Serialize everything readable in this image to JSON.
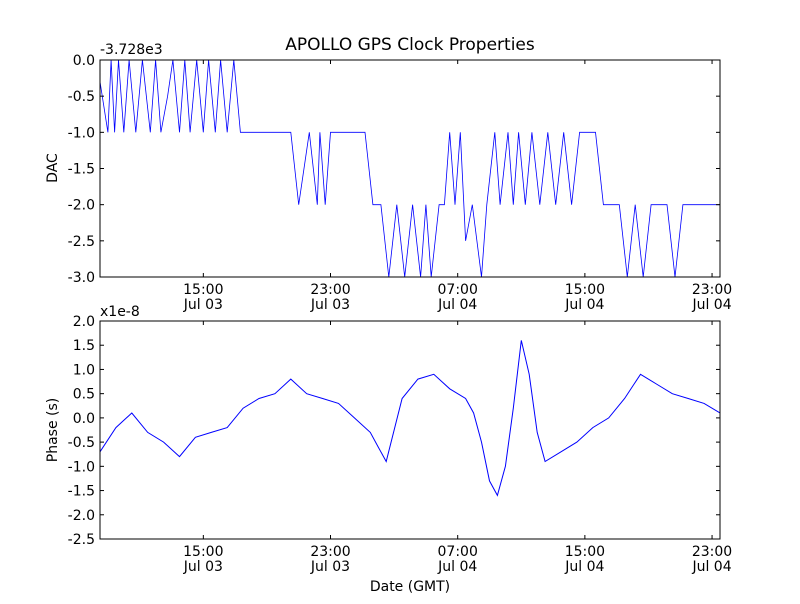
{
  "chart_data": [
    {
      "type": "line",
      "title": "APOLLO GPS Clock Properties",
      "ylabel": "DAC",
      "xlabel": "",
      "offset_label": "-3.728e3",
      "ylim": [
        -3.0,
        0.0
      ],
      "yticks": [
        0.0,
        -0.5,
        -1.0,
        -1.5,
        -2.0,
        -2.5,
        -3.0
      ],
      "ytick_labels": [
        "0.0",
        "-0.5",
        "-1.0",
        "-1.5",
        "-2.0",
        "-2.5",
        "-3.0"
      ],
      "xlim": [
        "2008-07-03T08:30",
        "2008-07-04T23:30"
      ],
      "xticks": [
        "2008-07-03T15:00",
        "2008-07-03T23:00",
        "2008-07-04T07:00",
        "2008-07-04T15:00",
        "2008-07-04T23:00"
      ],
      "xtick_labels": [
        [
          "15:00",
          "Jul 03"
        ],
        [
          "23:00",
          "Jul 03"
        ],
        [
          "07:00",
          "Jul 04"
        ],
        [
          "15:00",
          "Jul 04"
        ],
        [
          "23:00",
          "Jul 04"
        ]
      ],
      "grid": false,
      "line_color": "#0000ff",
      "series": [
        {
          "x": [
            "2008-07-03T08:30",
            "2008-07-03T09:00",
            "2008-07-03T09:12",
            "2008-07-03T09:25",
            "2008-07-03T09:40",
            "2008-07-03T10:00",
            "2008-07-03T10:20",
            "2008-07-03T10:45",
            "2008-07-03T11:10",
            "2008-07-03T11:40",
            "2008-07-03T12:00",
            "2008-07-03T12:20",
            "2008-07-03T12:45",
            "2008-07-03T13:05",
            "2008-07-03T13:30",
            "2008-07-03T13:50",
            "2008-07-03T14:10",
            "2008-07-03T14:35",
            "2008-07-03T15:00",
            "2008-07-03T15:20",
            "2008-07-03T15:45",
            "2008-07-03T16:05",
            "2008-07-03T16:30",
            "2008-07-03T16:55",
            "2008-07-03T17:20",
            "2008-07-03T17:40",
            "2008-07-03T18:00",
            "2008-07-03T18:25",
            "2008-07-03T18:45",
            "2008-07-03T19:05",
            "2008-07-03T19:25",
            "2008-07-03T19:45",
            "2008-07-03T20:05",
            "2008-07-03T20:30",
            "2008-07-03T21:00",
            "2008-07-03T21:40",
            "2008-07-03T22:10",
            "2008-07-03T22:20",
            "2008-07-03T22:40",
            "2008-07-03T23:00",
            "2008-07-03T23:40",
            "2008-07-04T00:00",
            "2008-07-04T00:15",
            "2008-07-04T00:40",
            "2008-07-04T01:10",
            "2008-07-04T01:40",
            "2008-07-04T02:10",
            "2008-07-04T02:40",
            "2008-07-04T03:10",
            "2008-07-04T03:40",
            "2008-07-04T04:10",
            "2008-07-04T04:40",
            "2008-07-04T05:00",
            "2008-07-04T05:20",
            "2008-07-04T05:50",
            "2008-07-04T06:10",
            "2008-07-04T06:30",
            "2008-07-04T06:50",
            "2008-07-04T07:10",
            "2008-07-04T07:30",
            "2008-07-04T07:55",
            "2008-07-04T08:30",
            "2008-07-04T08:50",
            "2008-07-04T09:20",
            "2008-07-04T09:40",
            "2008-07-04T10:10",
            "2008-07-04T10:30",
            "2008-07-04T10:50",
            "2008-07-04T11:15",
            "2008-07-04T11:40",
            "2008-07-04T12:10",
            "2008-07-04T12:40",
            "2008-07-04T13:10",
            "2008-07-04T13:40",
            "2008-07-04T14:10",
            "2008-07-04T14:40",
            "2008-07-04T15:10",
            "2008-07-04T15:40",
            "2008-07-04T16:10",
            "2008-07-04T16:40",
            "2008-07-04T17:10",
            "2008-07-04T17:40",
            "2008-07-04T18:10",
            "2008-07-04T18:40",
            "2008-07-04T19:10",
            "2008-07-04T19:40",
            "2008-07-04T20:10",
            "2008-07-04T20:40",
            "2008-07-04T21:10",
            "2008-07-04T21:40",
            "2008-07-04T22:10",
            "2008-07-04T22:40",
            "2008-07-04T23:10",
            "2008-07-04T23:30"
          ],
          "y": [
            -0.3,
            -1.0,
            0.0,
            -1.0,
            0.0,
            -1.0,
            0.0,
            -1.0,
            0.0,
            -1.0,
            0.0,
            -1.0,
            -0.5,
            0.0,
            -1.0,
            0.0,
            -1.0,
            0.0,
            -1.0,
            0.0,
            -1.0,
            0.0,
            -1.0,
            0.0,
            -1.0,
            -1.0,
            -1.0,
            -1.0,
            -1.0,
            -1.0,
            -1.0,
            -1.0,
            -1.0,
            -1.0,
            -2.0,
            -1.0,
            -2.0,
            -1.0,
            -2.0,
            -1.0,
            -1.0,
            -1.0,
            -1.0,
            -1.0,
            -1.0,
            -2.0,
            -2.0,
            -3.0,
            -2.0,
            -3.0,
            -2.0,
            -3.0,
            -2.0,
            -3.0,
            -2.0,
            -2.0,
            -1.0,
            -2.0,
            -1.0,
            -2.5,
            -2.0,
            -3.0,
            -2.0,
            -1.0,
            -2.0,
            -1.0,
            -2.0,
            -1.0,
            -2.0,
            -1.0,
            -2.0,
            -1.0,
            -2.0,
            -1.0,
            -2.0,
            -1.0,
            -1.0,
            -1.0,
            -2.0,
            -2.0,
            -2.0,
            -3.0,
            -2.0,
            -3.0,
            -2.0,
            -2.0,
            -2.0,
            -3.0,
            -2.0,
            -2.0,
            -2.0,
            -2.0,
            -2.0,
            -2.0
          ]
        }
      ]
    },
    {
      "type": "line",
      "title": "",
      "ylabel": "Phase (s)",
      "xlabel": "Date (GMT)",
      "offset_label": "x1e-8",
      "ylim": [
        -2.5,
        2.0
      ],
      "yticks": [
        2.0,
        1.5,
        1.0,
        0.5,
        0.0,
        -0.5,
        -1.0,
        -1.5,
        -2.0,
        -2.5
      ],
      "ytick_labels": [
        "2.0",
        "1.5",
        "1.0",
        "0.5",
        "0.0",
        "-0.5",
        "-1.0",
        "-1.5",
        "-2.0",
        "-2.5"
      ],
      "xlim": [
        "2008-07-03T08:30",
        "2008-07-04T23:30"
      ],
      "xticks": [
        "2008-07-03T15:00",
        "2008-07-03T23:00",
        "2008-07-04T07:00",
        "2008-07-04T15:00",
        "2008-07-04T23:00"
      ],
      "xtick_labels": [
        [
          "15:00",
          "Jul 03"
        ],
        [
          "23:00",
          "Jul 03"
        ],
        [
          "07:00",
          "Jul 04"
        ],
        [
          "15:00",
          "Jul 04"
        ],
        [
          "23:00",
          "Jul 04"
        ]
      ],
      "grid": false,
      "line_color": "#0000ff",
      "series": [
        {
          "x": [
            "2008-07-03T08:30",
            "2008-07-03T09:30",
            "2008-07-03T10:30",
            "2008-07-03T11:30",
            "2008-07-03T12:30",
            "2008-07-03T13:30",
            "2008-07-03T14:30",
            "2008-07-03T15:30",
            "2008-07-03T16:30",
            "2008-07-03T17:30",
            "2008-07-03T18:30",
            "2008-07-03T19:30",
            "2008-07-03T20:30",
            "2008-07-03T21:30",
            "2008-07-03T22:30",
            "2008-07-03T23:30",
            "2008-07-04T00:30",
            "2008-07-04T01:30",
            "2008-07-04T02:00",
            "2008-07-04T02:30",
            "2008-07-04T03:30",
            "2008-07-04T04:30",
            "2008-07-04T05:30",
            "2008-07-04T06:30",
            "2008-07-04T07:30",
            "2008-07-04T08:00",
            "2008-07-04T08:30",
            "2008-07-04T09:00",
            "2008-07-04T09:30",
            "2008-07-04T10:00",
            "2008-07-04T10:30",
            "2008-07-04T11:00",
            "2008-07-04T11:30",
            "2008-07-04T12:00",
            "2008-07-04T12:30",
            "2008-07-04T13:30",
            "2008-07-04T14:30",
            "2008-07-04T15:30",
            "2008-07-04T16:30",
            "2008-07-04T17:30",
            "2008-07-04T18:30",
            "2008-07-04T19:30",
            "2008-07-04T20:30",
            "2008-07-04T21:30",
            "2008-07-04T22:30",
            "2008-07-04T23:30"
          ],
          "y": [
            -0.7,
            -0.2,
            0.1,
            -0.3,
            -0.5,
            -0.8,
            -0.4,
            -0.3,
            -0.2,
            0.2,
            0.4,
            0.5,
            0.8,
            0.5,
            0.4,
            0.3,
            0.0,
            -0.3,
            -0.6,
            -0.9,
            0.4,
            0.8,
            0.9,
            0.6,
            0.4,
            0.1,
            -0.5,
            -1.3,
            -1.6,
            -1.0,
            0.2,
            1.6,
            0.9,
            -0.3,
            -0.9,
            -0.7,
            -0.5,
            -0.2,
            0.0,
            0.4,
            0.9,
            0.7,
            0.5,
            0.4,
            0.3,
            0.1
          ]
        }
      ]
    }
  ]
}
